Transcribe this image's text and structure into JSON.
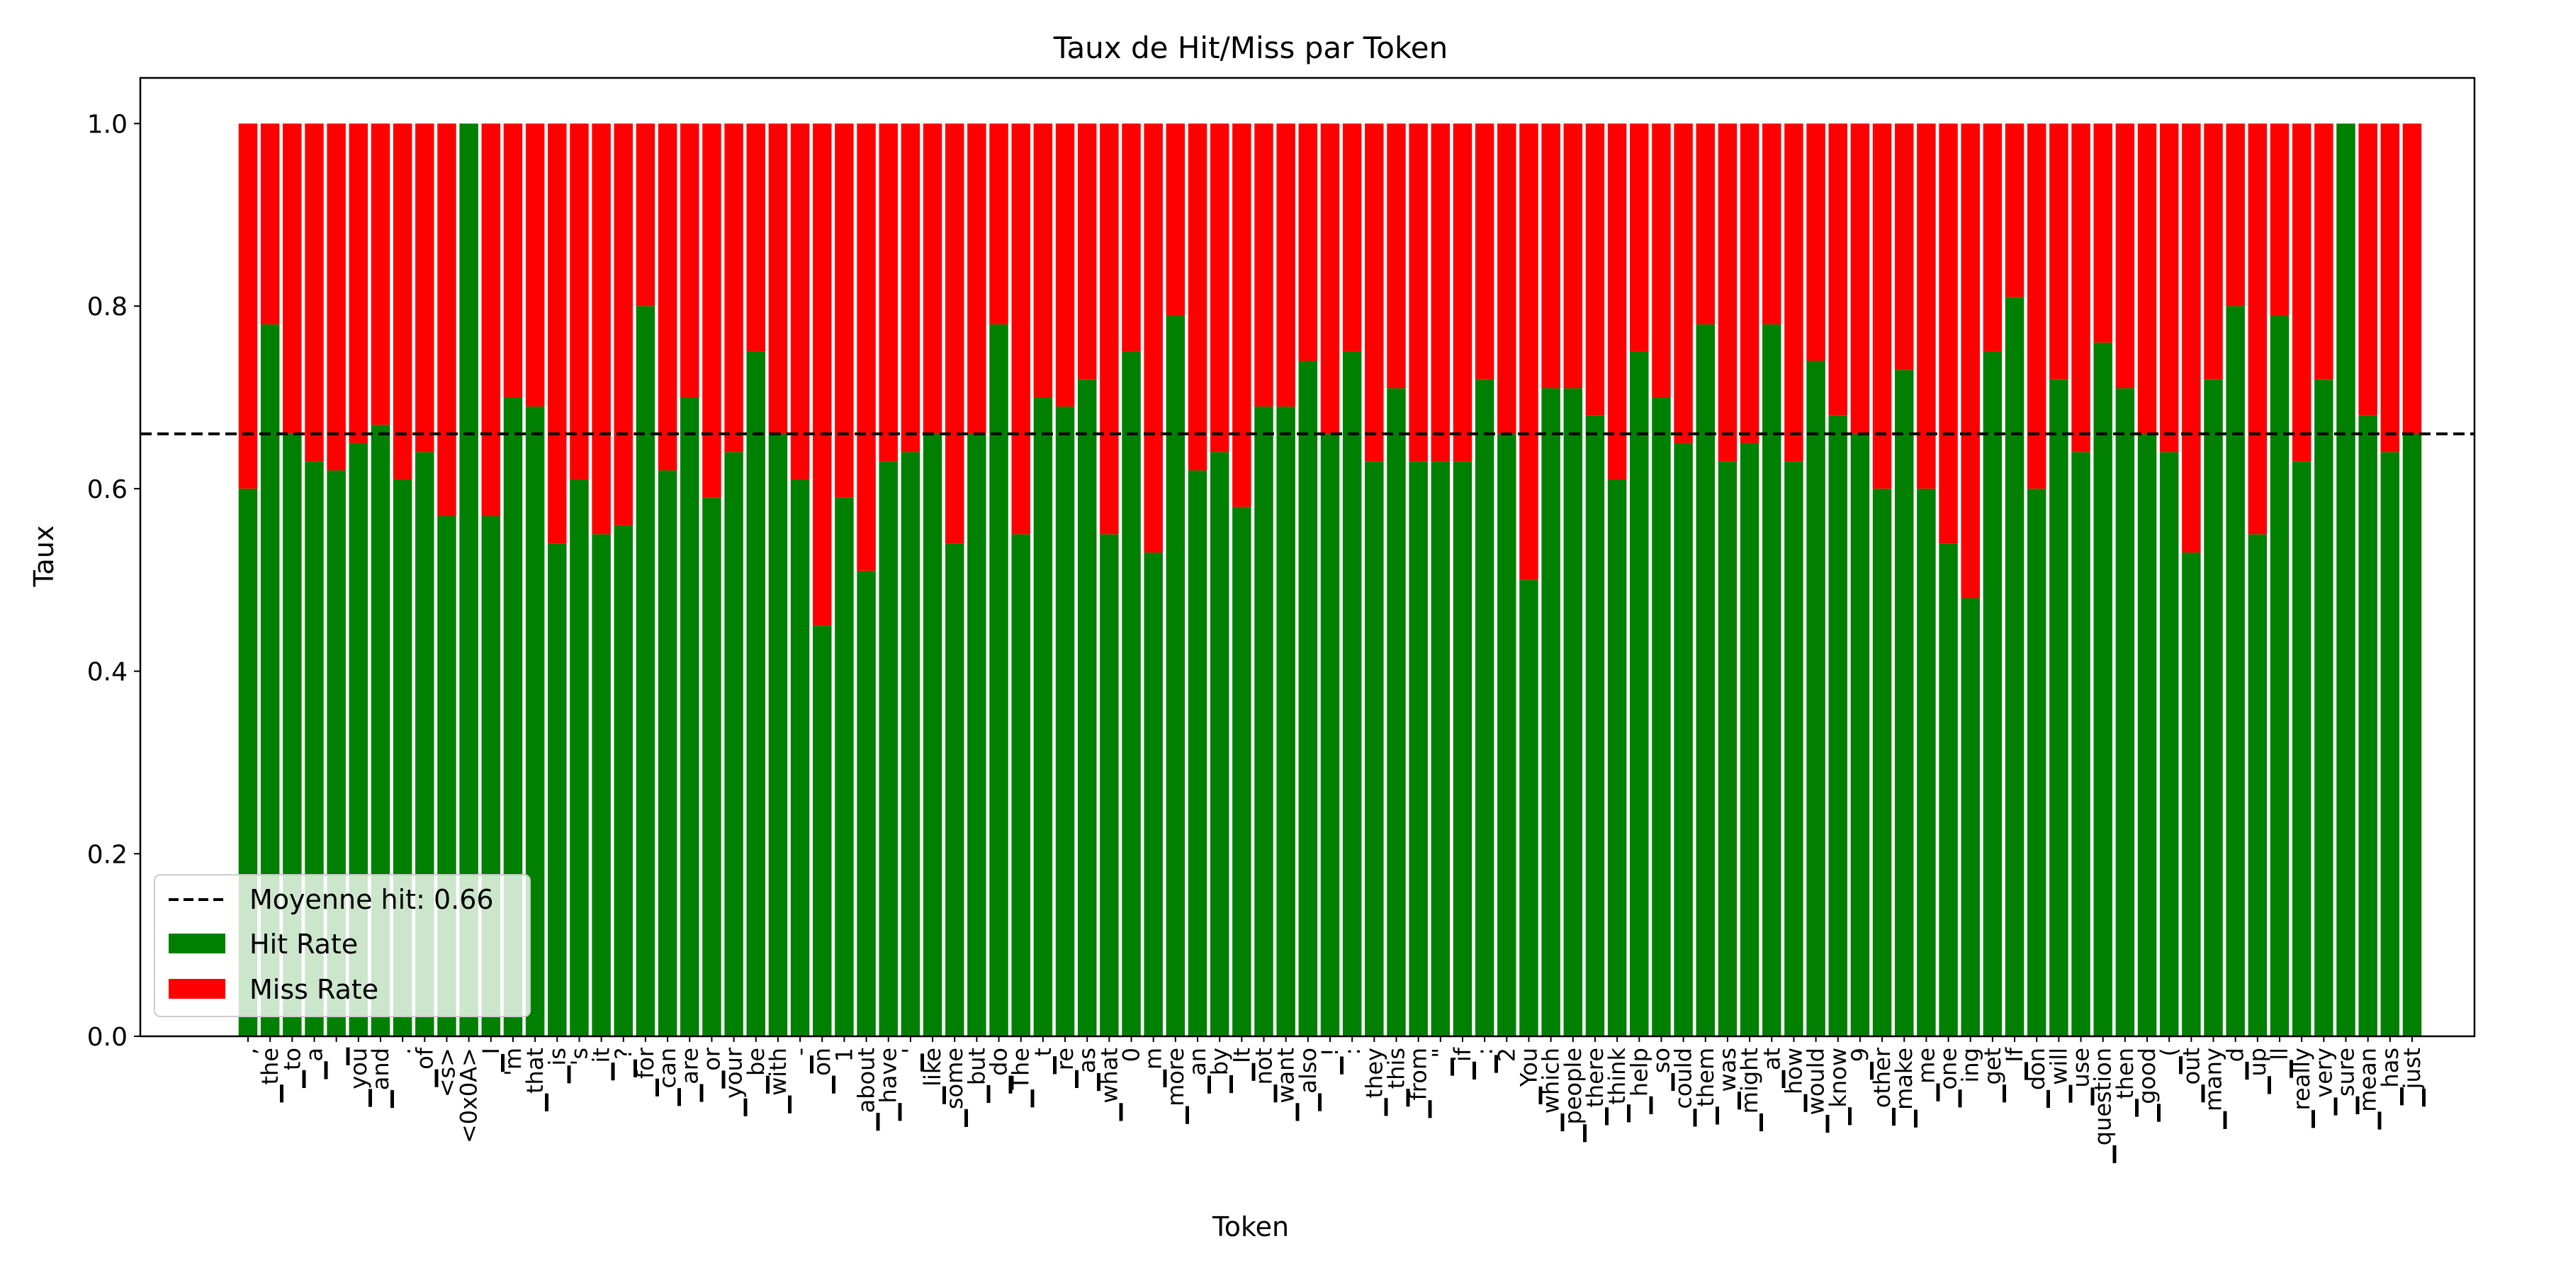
{
  "chart_data": {
    "type": "bar",
    "stacked": true,
    "title": "Taux de Hit/Miss par Token",
    "xlabel": "Token",
    "ylabel": "Taux",
    "ylim": [
      0,
      1.05
    ],
    "yticks": [
      "0.0",
      "0.2",
      "0.4",
      "0.6",
      "0.8",
      "1.0"
    ],
    "ytick_values": [
      0,
      0.2,
      0.4,
      0.6,
      0.8,
      1.0
    ],
    "mean_hit": 0.66,
    "legend": {
      "placement": "lower-left",
      "mean_label": "Moyenne hit: 0.66",
      "hit_label": "Hit Rate",
      "miss_label": "Miss Rate"
    },
    "colors": {
      "hit": "#008000",
      "miss": "#ff0000",
      "mean_line": "#000000"
    },
    "categories": [
      ",",
      "▁the",
      "▁to",
      "▁a",
      "▁",
      "▁you",
      "▁and",
      ".",
      "▁of",
      "<s>",
      "<0x0A>",
      "▁I",
      "'m",
      "▁that",
      "▁is",
      "'s",
      "▁it",
      "▁?",
      "▁for",
      "▁can",
      "▁are",
      "▁or",
      "▁your",
      "▁be",
      "▁with",
      "▁-",
      "▁on",
      "1",
      "▁about",
      "▁have",
      "▁'",
      "▁like",
      "▁some",
      "▁but",
      "▁do",
      "▁The",
      "▁t",
      "▁re",
      "▁as",
      "▁what",
      "0",
      "▁m",
      "▁more",
      "▁an",
      "▁by",
      "▁It",
      "▁not",
      "▁want",
      "▁also",
      "▁!",
      ":",
      "▁they",
      "▁this",
      "▁from",
      "▁\"",
      "▁if",
      "▁:",
      "2",
      "▁You",
      "▁which",
      "▁people",
      "▁there",
      "▁think",
      "▁help",
      "▁so",
      "▁could",
      "▁them",
      "▁was",
      "▁might",
      "▁at",
      "▁how",
      "▁would",
      "▁know",
      "▁9",
      "▁other",
      "▁make",
      "▁me",
      "▁one",
      "ing",
      "▁get",
      "▁If",
      "▁don",
      "▁will",
      "▁use",
      "▁question",
      "▁then",
      "▁good",
      "▁(",
      "▁out",
      "▁many",
      "▁d",
      "▁up",
      "▁ll",
      "▁really",
      "▁very",
      "▁sure",
      "▁mean",
      "▁has",
      "▁just"
    ],
    "series": [
      {
        "name": "Hit Rate",
        "values": [
          0.6,
          0.78,
          0.66,
          0.63,
          0.62,
          0.65,
          0.67,
          0.61,
          0.64,
          0.57,
          1.0,
          0.57,
          0.7,
          0.69,
          0.54,
          0.61,
          0.55,
          0.56,
          0.8,
          0.62,
          0.7,
          0.59,
          0.64,
          0.75,
          0.66,
          0.61,
          0.45,
          0.59,
          0.51,
          0.63,
          0.64,
          0.66,
          0.54,
          0.66,
          0.78,
          0.55,
          0.7,
          0.69,
          0.72,
          0.55,
          0.75,
          0.53,
          0.79,
          0.62,
          0.64,
          0.58,
          0.69,
          0.69,
          0.74,
          0.66,
          0.75,
          0.63,
          0.71,
          0.63,
          0.63,
          0.63,
          0.72,
          0.66,
          0.5,
          0.71,
          0.71,
          0.68,
          0.61,
          0.75,
          0.7,
          0.65,
          0.78,
          0.63,
          0.65,
          0.78,
          0.63,
          0.74,
          0.68,
          0.66,
          0.6,
          0.73,
          0.6,
          0.54,
          0.48,
          0.75,
          0.81,
          0.6,
          0.72,
          0.64,
          0.76,
          0.71,
          0.66,
          0.64,
          0.53,
          0.72,
          0.8,
          0.55,
          0.79,
          0.63,
          0.72,
          1.0,
          0.68,
          0.64,
          0.66
        ]
      },
      {
        "name": "Miss Rate",
        "values": [
          0.4,
          0.22,
          0.34,
          0.37,
          0.38,
          0.35,
          0.33,
          0.39,
          0.36,
          0.43,
          0.0,
          0.43,
          0.3,
          0.31,
          0.46,
          0.39,
          0.45,
          0.44,
          0.2,
          0.38,
          0.3,
          0.41,
          0.36,
          0.25,
          0.34,
          0.39,
          0.55,
          0.41,
          0.49,
          0.37,
          0.36,
          0.34,
          0.46,
          0.34,
          0.22,
          0.45,
          0.3,
          0.31,
          0.28,
          0.45,
          0.25,
          0.47,
          0.21,
          0.38,
          0.36,
          0.42,
          0.31,
          0.31,
          0.26,
          0.34,
          0.25,
          0.37,
          0.29,
          0.37,
          0.37,
          0.37,
          0.28,
          0.34,
          0.5,
          0.29,
          0.29,
          0.32,
          0.39,
          0.25,
          0.3,
          0.35,
          0.22,
          0.37,
          0.35,
          0.22,
          0.37,
          0.26,
          0.32,
          0.34,
          0.4,
          0.27,
          0.4,
          0.46,
          0.52,
          0.25,
          0.19,
          0.4,
          0.28,
          0.36,
          0.24,
          0.29,
          0.34,
          0.36,
          0.47,
          0.28,
          0.2,
          0.45,
          0.21,
          0.37,
          0.28,
          0.0,
          0.32,
          0.36,
          0.34
        ]
      }
    ]
  }
}
